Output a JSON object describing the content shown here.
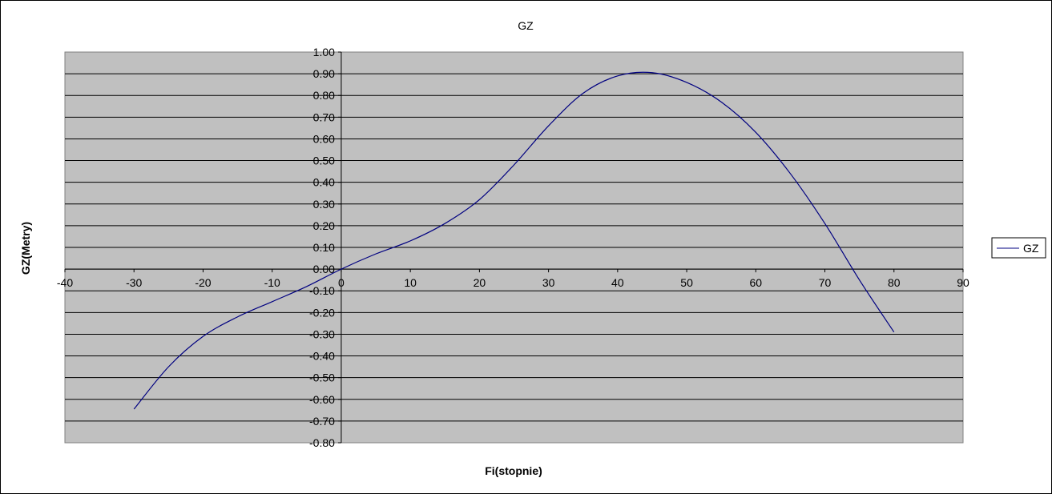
{
  "chart_data": {
    "type": "line",
    "title": "GZ",
    "xlabel": "Fi(stopnie)",
    "ylabel": "GZ(Metry)",
    "xlim": [
      -40,
      90
    ],
    "ylim": [
      -0.8,
      1.0
    ],
    "x_ticks": [
      "-40",
      "-30",
      "-20",
      "-10",
      "0",
      "10",
      "20",
      "30",
      "40",
      "50",
      "60",
      "70",
      "80",
      "90"
    ],
    "y_ticks": [
      "1.00",
      "0.90",
      "0.80",
      "0.70",
      "0.60",
      "0.50",
      "0.40",
      "0.30",
      "0.20",
      "0.10",
      "0.00",
      "-0.10",
      "-0.20",
      "-0.30",
      "-0.40",
      "-0.50",
      "-0.60",
      "-0.70",
      "-0.80"
    ],
    "grid": "horizontal",
    "legend_position": "right",
    "plot_background": "#c0c0c0",
    "series": [
      {
        "name": "GZ",
        "color": "#000080",
        "x": [
          -30,
          -25,
          -20,
          -15,
          -10,
          -5,
          0,
          5,
          10,
          15,
          20,
          25,
          30,
          35,
          40,
          45,
          50,
          55,
          60,
          65,
          70,
          75,
          80
        ],
        "y": [
          -0.645,
          -0.45,
          -0.31,
          -0.22,
          -0.15,
          -0.08,
          0.0,
          0.07,
          0.13,
          0.21,
          0.32,
          0.48,
          0.66,
          0.81,
          0.89,
          0.905,
          0.86,
          0.77,
          0.63,
          0.44,
          0.21,
          -0.05,
          -0.29
        ]
      }
    ]
  }
}
